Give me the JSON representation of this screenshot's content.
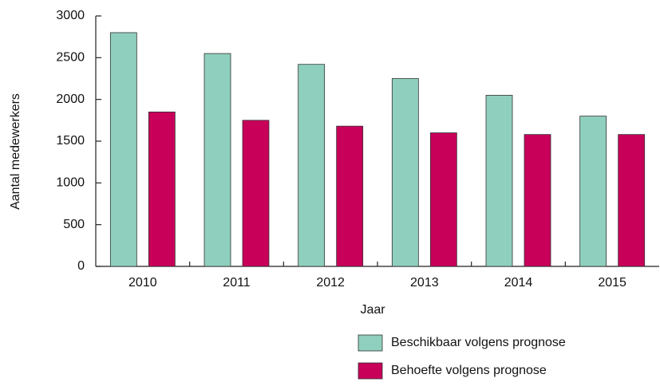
{
  "chart_data": {
    "type": "bar",
    "categories": [
      "2010",
      "2011",
      "2012",
      "2013",
      "2014",
      "2015"
    ],
    "series": [
      {
        "name": "Beschikbaar volgens prognose",
        "color": "#8fcfbd",
        "values": [
          2800,
          2550,
          2420,
          2250,
          2050,
          1800
        ]
      },
      {
        "name": "Behoefte volgens prognose",
        "color": "#c8005a",
        "values": [
          1850,
          1750,
          1680,
          1600,
          1580,
          1580
        ]
      }
    ],
    "x_label": "Jaar",
    "y_label": "Aantal medewerkers",
    "ylim": [
      0,
      3000
    ],
    "yticks": [
      0,
      500,
      1000,
      1500,
      2000,
      2500,
      3000
    ],
    "legend": "bottom",
    "grid": false
  }
}
